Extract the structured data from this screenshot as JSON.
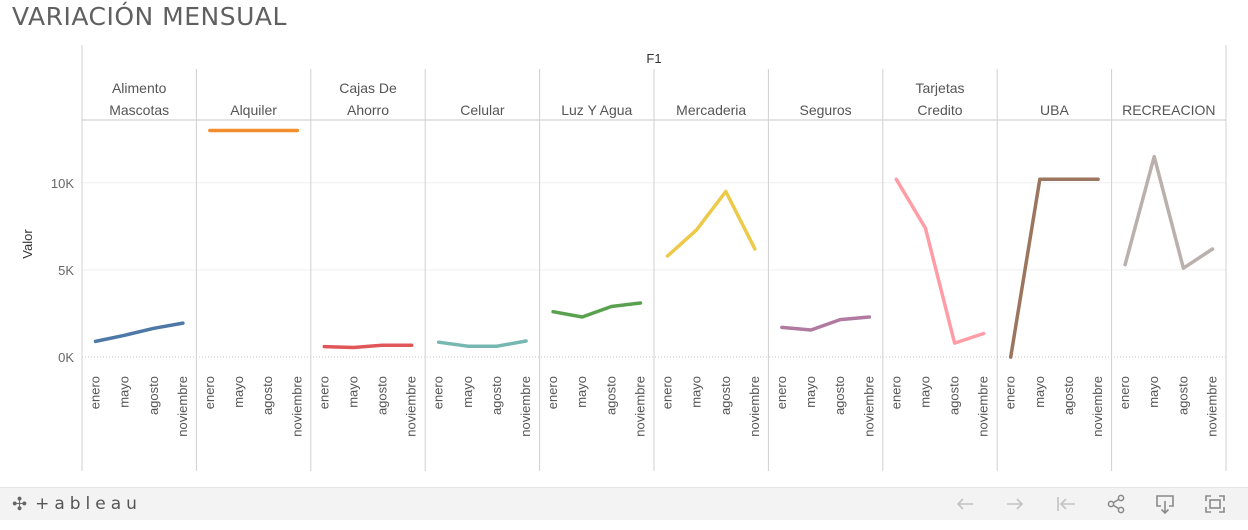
{
  "title": "VARIACIÓN MENSUAL",
  "chart_data": {
    "type": "line",
    "column_header": "F1",
    "ylabel": "Valor",
    "ylim": [
      -800,
      13600
    ],
    "yticks": [
      0,
      5000,
      10000
    ],
    "ytick_labels": [
      "0K",
      "5K",
      "10K"
    ],
    "categories": [
      "enero",
      "mayo",
      "agosto",
      "noviembre"
    ],
    "grid": true,
    "series": [
      {
        "name": "Alimento Mascotas",
        "label_lines": [
          "Alimento",
          "Mascotas"
        ],
        "color": "#4e79a7",
        "values": [
          900,
          1250,
          1650,
          1950
        ]
      },
      {
        "name": "Alquiler",
        "label_lines": [
          "Alquiler"
        ],
        "color": "#f28e2b",
        "values": [
          13000,
          13000,
          13000,
          13000
        ]
      },
      {
        "name": "Cajas De Ahorro",
        "label_lines": [
          "Cajas De",
          "Ahorro"
        ],
        "color": "#e15759",
        "values": [
          600,
          550,
          680,
          680
        ]
      },
      {
        "name": "Celular",
        "label_lines": [
          "Celular"
        ],
        "color": "#76b7b2",
        "values": [
          850,
          620,
          620,
          920
        ]
      },
      {
        "name": "Luz Y Agua",
        "label_lines": [
          "Luz Y Agua"
        ],
        "color": "#59a14f",
        "values": [
          2600,
          2300,
          2900,
          3100
        ]
      },
      {
        "name": "Mercaderia",
        "label_lines": [
          "Mercaderia"
        ],
        "color": "#edc948",
        "values": [
          5800,
          7300,
          9500,
          6200
        ]
      },
      {
        "name": "Seguros",
        "label_lines": [
          "Seguros"
        ],
        "color": "#b07aa1",
        "values": [
          1700,
          1550,
          2150,
          2300
        ]
      },
      {
        "name": "Tarjetas Credito",
        "label_lines": [
          "Tarjetas",
          "Credito"
        ],
        "color": "#ff9da7",
        "values": [
          10200,
          7400,
          800,
          1350
        ]
      },
      {
        "name": "UBA",
        "label_lines": [
          "UBA"
        ],
        "color": "#9c755f",
        "values": [
          0,
          10200,
          10200,
          10200
        ]
      },
      {
        "name": "RECREACION",
        "label_lines": [
          "RECREACION"
        ],
        "color": "#bab0ac",
        "values": [
          5300,
          11500,
          5100,
          6200
        ]
      }
    ]
  },
  "toolbar": {
    "logo_text": "+ableau",
    "logo_mark": "✣",
    "buttons": [
      {
        "name": "undo-button",
        "icon": "arrow-left-icon",
        "enabled": false
      },
      {
        "name": "redo-button",
        "icon": "arrow-right-icon",
        "enabled": false
      },
      {
        "name": "revert-button",
        "icon": "revert-icon",
        "enabled": false
      },
      {
        "name": "share-button",
        "icon": "share-icon",
        "enabled": true
      },
      {
        "name": "download-button",
        "icon": "download-icon",
        "enabled": true
      },
      {
        "name": "fullscreen-button",
        "icon": "fullscreen-icon",
        "enabled": true
      }
    ]
  }
}
